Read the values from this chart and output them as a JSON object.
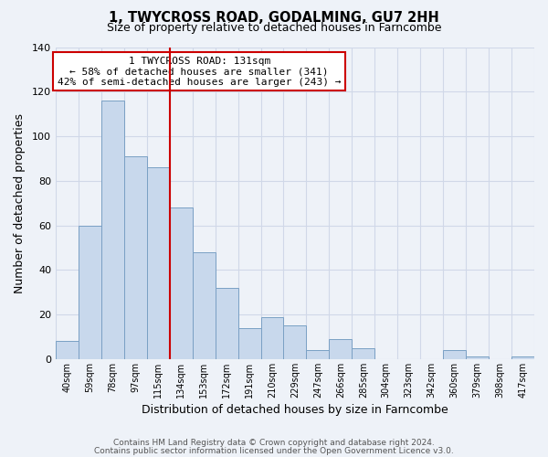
{
  "title": "1, TWYCROSS ROAD, GODALMING, GU7 2HH",
  "subtitle": "Size of property relative to detached houses in Farncombe",
  "xlabel": "Distribution of detached houses by size in Farncombe",
  "ylabel": "Number of detached properties",
  "bar_labels": [
    "40sqm",
    "59sqm",
    "78sqm",
    "97sqm",
    "115sqm",
    "134sqm",
    "153sqm",
    "172sqm",
    "191sqm",
    "210sqm",
    "229sqm",
    "247sqm",
    "266sqm",
    "285sqm",
    "304sqm",
    "323sqm",
    "342sqm",
    "360sqm",
    "379sqm",
    "398sqm",
    "417sqm"
  ],
  "bar_values": [
    8,
    60,
    116,
    91,
    86,
    68,
    48,
    32,
    14,
    19,
    15,
    4,
    9,
    5,
    0,
    0,
    0,
    4,
    1,
    0,
    1
  ],
  "bar_color": "#c8d8ec",
  "bar_edge_color": "#7aa0c4",
  "vline_color": "#cc0000",
  "vline_position": 4.5,
  "ylim": [
    0,
    140
  ],
  "yticks": [
    0,
    20,
    40,
    60,
    80,
    100,
    120,
    140
  ],
  "annotation_title": "1 TWYCROSS ROAD: 131sqm",
  "annotation_line1": "← 58% of detached houses are smaller (341)",
  "annotation_line2": "42% of semi-detached houses are larger (243) →",
  "annotation_box_color": "#ffffff",
  "annotation_box_edge": "#cc0000",
  "footer_line1": "Contains HM Land Registry data © Crown copyright and database right 2024.",
  "footer_line2": "Contains public sector information licensed under the Open Government Licence v3.0.",
  "background_color": "#eef2f8",
  "grid_color": "#d0d8e8"
}
